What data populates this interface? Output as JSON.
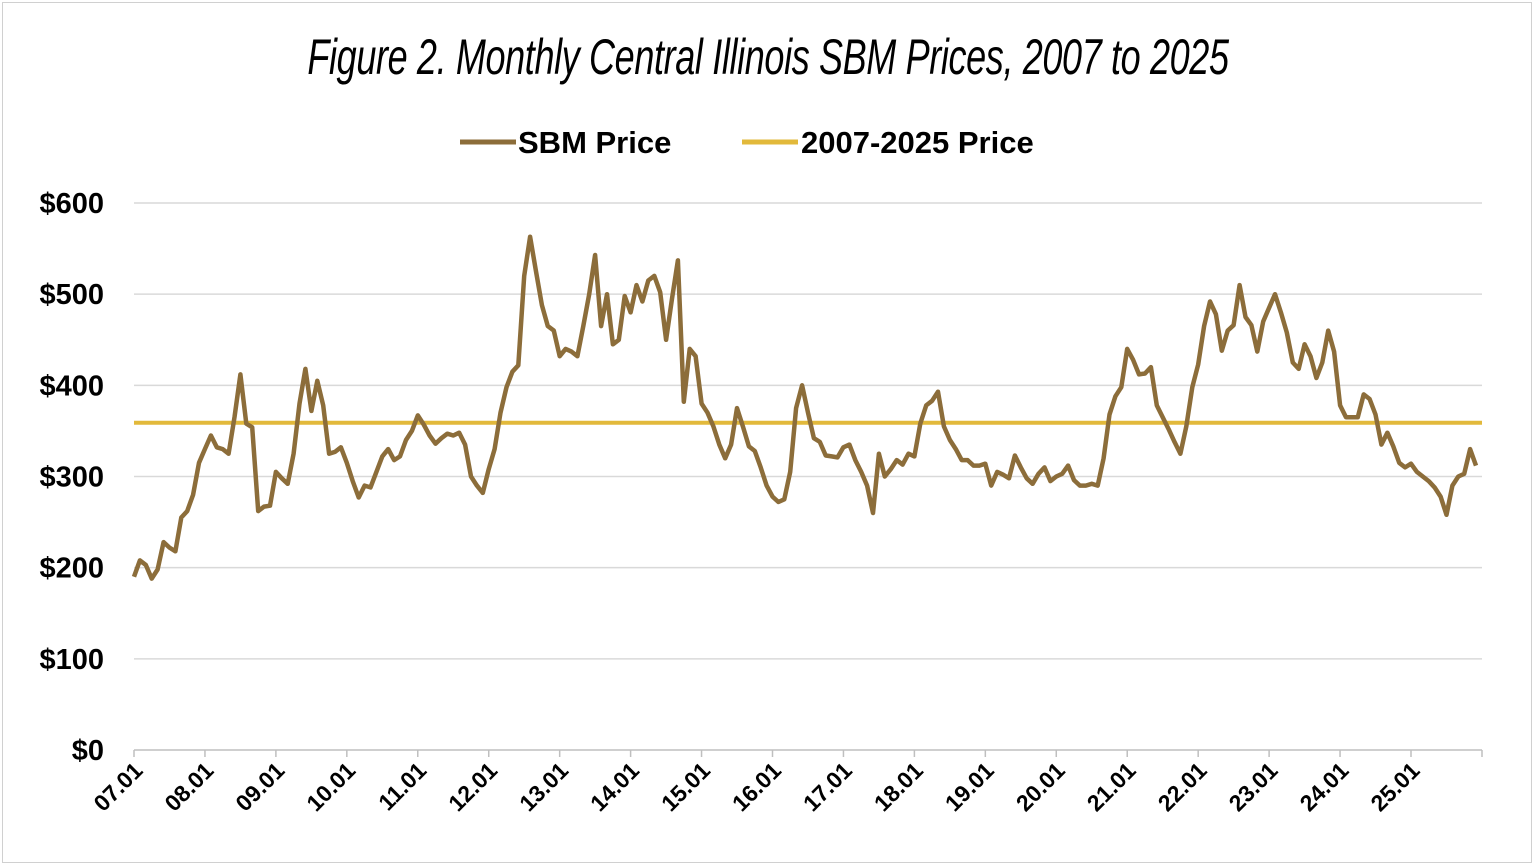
{
  "chart_data": {
    "type": "line",
    "title": "Figure 2.  Monthly Central Illinois SBM Prices, 2007 to 2025",
    "xlabel": "",
    "ylabel": "",
    "ylim": [
      0,
      600
    ],
    "y_ticks": [
      "$0",
      "$100",
      "$200",
      "$300",
      "$400",
      "$500",
      "$600"
    ],
    "y_tick_values": [
      0,
      100,
      200,
      300,
      400,
      500,
      600
    ],
    "x_ticks": [
      "07.01",
      "08.01",
      "09.01",
      "10.01",
      "11.01",
      "12.01",
      "13.01",
      "14.01",
      "15.01",
      "16.01",
      "17.01",
      "18.01",
      "19.01",
      "20.01",
      "21.01",
      "22.01",
      "23.01",
      "24.01",
      "25.01"
    ],
    "grid": "horizontal",
    "legend_placement": "top",
    "start_period": "07.01",
    "series": [
      {
        "name": "SBM Price",
        "color": "#8c6d3a",
        "values": [
          190,
          208,
          203,
          188,
          198,
          228,
          222,
          218,
          255,
          262,
          280,
          315,
          330,
          345,
          332,
          330,
          325,
          365,
          412,
          358,
          354,
          262,
          267,
          268,
          305,
          298,
          292,
          325,
          380,
          418,
          372,
          405,
          378,
          325,
          327,
          332,
          315,
          295,
          277,
          290,
          288,
          305,
          322,
          330,
          318,
          322,
          340,
          350,
          367,
          357,
          345,
          336,
          342,
          347,
          345,
          348,
          335,
          300,
          290,
          282,
          308,
          330,
          370,
          398,
          415,
          422,
          520,
          563,
          525,
          488,
          465,
          460,
          432,
          440,
          437,
          432,
          465,
          500,
          543,
          465,
          500,
          445,
          450,
          498,
          480,
          510,
          492,
          515,
          520,
          502,
          450,
          495,
          537,
          382,
          440,
          432,
          380,
          370,
          355,
          335,
          320,
          335,
          375,
          355,
          333,
          328,
          310,
          290,
          278,
          272,
          275,
          305,
          375,
          400,
          370,
          342,
          338,
          323,
          322,
          321,
          332,
          335,
          318,
          305,
          290,
          260,
          325,
          300,
          308,
          318,
          313,
          325,
          322,
          358,
          378,
          383,
          393,
          355,
          340,
          330,
          318,
          318,
          312,
          312,
          314,
          290,
          305,
          302,
          298,
          323,
          310,
          298,
          292,
          303,
          310,
          295,
          300,
          303,
          312,
          296,
          290,
          290,
          292,
          290,
          320,
          368,
          388,
          398,
          440,
          428,
          412,
          413,
          420,
          378,
          365,
          352,
          338,
          325,
          355,
          398,
          423,
          465,
          492,
          478,
          438,
          460,
          466,
          510,
          475,
          466,
          437,
          470,
          485,
          500,
          480,
          458,
          425,
          418,
          445,
          432,
          408,
          425,
          460,
          437,
          378,
          365,
          365,
          365,
          390,
          385,
          368,
          335,
          348,
          333,
          315,
          310,
          314,
          305,
          300,
          295,
          288,
          278,
          258,
          290,
          300,
          303,
          330,
          312
        ]
      },
      {
        "name": "2007-2025 Price",
        "color": "#e2b93b",
        "constant": 359
      }
    ]
  }
}
